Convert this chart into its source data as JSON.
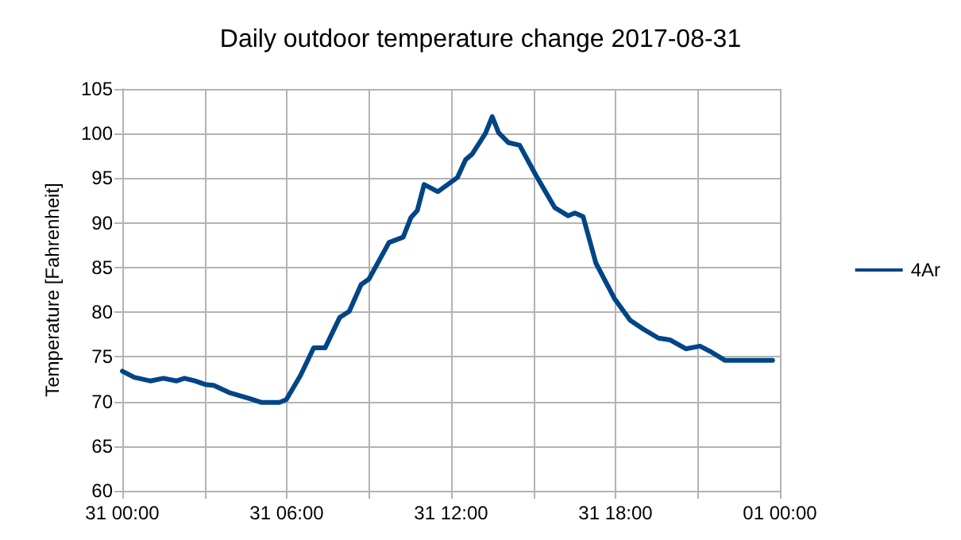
{
  "chart_data": {
    "type": "line",
    "title": "Daily outdoor temperature change 2017-08-31",
    "ylabel": "Temperature [Fahrenheit]",
    "xlim": [
      "2017-08-31T00:00",
      "2017-09-01T00:00"
    ],
    "xticks": [
      {
        "value": "2017-08-31T00:00",
        "label": "31 00:00"
      },
      {
        "value": "2017-08-31T03:00",
        "label": null
      },
      {
        "value": "2017-08-31T06:00",
        "label": "31 06:00"
      },
      {
        "value": "2017-08-31T09:00",
        "label": null
      },
      {
        "value": "2017-08-31T12:00",
        "label": "31 12:00"
      },
      {
        "value": "2017-08-31T15:00",
        "label": null
      },
      {
        "value": "2017-08-31T18:00",
        "label": "31 18:00"
      },
      {
        "value": "2017-08-31T21:00",
        "label": null
      },
      {
        "value": "2017-09-01T00:00",
        "label": "01 00:00"
      }
    ],
    "ylim": [
      60,
      105
    ],
    "yticks": [
      60,
      65,
      70,
      75,
      80,
      85,
      90,
      95,
      100,
      105
    ],
    "grid": true,
    "legend": "right",
    "marker": "none",
    "line_style": "solid",
    "series": [
      {
        "name": "4Ar",
        "color": "#004586",
        "x": [
          "2017-08-31T00:00",
          "2017-08-31T00:26",
          "2017-08-31T01:01",
          "2017-08-31T01:30",
          "2017-08-31T01:59",
          "2017-08-31T02:16",
          "2017-08-31T02:39",
          "2017-08-31T03:02",
          "2017-08-31T03:20",
          "2017-08-31T03:54",
          "2017-08-31T04:40",
          "2017-08-31T05:04",
          "2017-08-31T05:44",
          "2017-08-31T05:59",
          "2017-08-31T06:30",
          "2017-08-31T06:59",
          "2017-08-31T07:24",
          "2017-08-31T07:56",
          "2017-08-31T08:17",
          "2017-08-31T08:43",
          "2017-08-31T09:00",
          "2017-08-31T09:44",
          "2017-08-31T10:15",
          "2017-08-31T10:32",
          "2017-08-31T10:46",
          "2017-08-31T11:01",
          "2017-08-31T11:31",
          "2017-08-31T12:14",
          "2017-08-31T12:32",
          "2017-08-31T12:46",
          "2017-08-31T13:15",
          "2017-08-31T13:30",
          "2017-08-31T13:44",
          "2017-08-31T14:05",
          "2017-08-31T14:30",
          "2017-08-31T15:05",
          "2017-08-31T15:47",
          "2017-08-31T16:16",
          "2017-08-31T16:31",
          "2017-08-31T16:49",
          "2017-08-31T17:17",
          "2017-08-31T17:58",
          "2017-08-31T18:32",
          "2017-08-31T19:01",
          "2017-08-31T19:34",
          "2017-08-31T19:59",
          "2017-08-31T20:34",
          "2017-08-31T21:05",
          "2017-08-31T21:31",
          "2017-08-31T22:00",
          "2017-08-31T23:44"
        ],
        "values": [
          73.4,
          72.7,
          72.3,
          72.6,
          72.3,
          72.6,
          72.3,
          71.9,
          71.8,
          71.0,
          70.3,
          69.9,
          69.9,
          70.2,
          72.9,
          76.0,
          76.0,
          79.4,
          80.1,
          83.1,
          83.7,
          87.8,
          88.4,
          90.6,
          91.4,
          94.3,
          93.5,
          95.1,
          97.1,
          97.7,
          100.0,
          101.9,
          100.1,
          99.0,
          98.7,
          95.4,
          91.7,
          90.8,
          91.1,
          90.7,
          85.5,
          81.5,
          79.1,
          78.1,
          77.1,
          76.9,
          75.9,
          76.2,
          75.5,
          74.6,
          74.6
        ]
      }
    ]
  }
}
